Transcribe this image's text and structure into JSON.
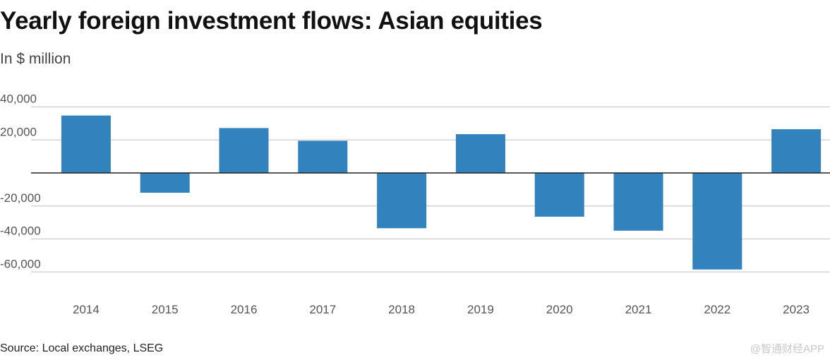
{
  "title": "Yearly foreign investment flows: Asian equities",
  "subtitle": "In $ million",
  "source": "Source: Local exchanges, LSEG",
  "watermark": "@智通财经APP",
  "colors": {
    "bar": "#3182bd",
    "grid": "#cccccc",
    "zero": "#222222",
    "axis_text": "#555555"
  },
  "chart_data": {
    "type": "bar",
    "title": "Yearly foreign investment flows: Asian equities",
    "ylabel": "In $ million",
    "xlabel": "",
    "categories": [
      "2014",
      "2015",
      "2016",
      "2017",
      "2018",
      "2019",
      "2020",
      "2021",
      "2022",
      "2023"
    ],
    "values": [
      34800,
      -12000,
      27200,
      19500,
      -33500,
      23500,
      -26500,
      -35000,
      -58500,
      26500
    ],
    "ylim": [
      -70000,
      40000
    ],
    "yticks": [
      40000,
      20000,
      -20000,
      -40000,
      -60000
    ],
    "ytick_labels": [
      "40,000",
      "20,000",
      "-20,000",
      "-40,000",
      "-60,000"
    ],
    "grid": true,
    "legend": "none"
  }
}
